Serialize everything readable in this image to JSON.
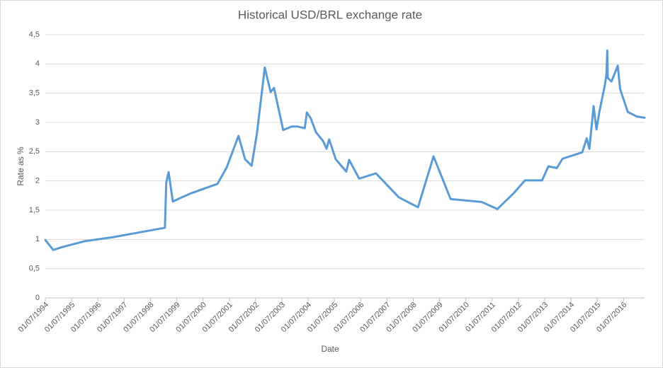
{
  "chart_data": {
    "type": "line",
    "title": "Historical USD/BRL exchange rate",
    "x_label": "Date",
    "y_label": "Rate as %",
    "xlim": [
      1994.5,
      2017.3
    ],
    "ylim": [
      0,
      4.5
    ],
    "xticks": [
      {
        "value": 1994.5,
        "label": "01/07/1994"
      },
      {
        "value": 1995.5,
        "label": "01/07/1995"
      },
      {
        "value": 1996.5,
        "label": "01/07/1996"
      },
      {
        "value": 1997.5,
        "label": "01/07/1997"
      },
      {
        "value": 1998.5,
        "label": "01/07/1998"
      },
      {
        "value": 1999.5,
        "label": "01/07/1999"
      },
      {
        "value": 2000.5,
        "label": "01/07/2000"
      },
      {
        "value": 2001.5,
        "label": "01/07/2001"
      },
      {
        "value": 2002.5,
        "label": "01/07/2002"
      },
      {
        "value": 2003.5,
        "label": "01/07/2003"
      },
      {
        "value": 2004.5,
        "label": "01/07/2004"
      },
      {
        "value": 2005.5,
        "label": "01/07/2005"
      },
      {
        "value": 2006.5,
        "label": "01/07/2006"
      },
      {
        "value": 2007.5,
        "label": "01/07/2007"
      },
      {
        "value": 2008.5,
        "label": "01/07/2008"
      },
      {
        "value": 2009.5,
        "label": "01/07/2009"
      },
      {
        "value": 2010.5,
        "label": "01/07/2010"
      },
      {
        "value": 2011.5,
        "label": "01/07/2011"
      },
      {
        "value": 2012.5,
        "label": "01/07/2012"
      },
      {
        "value": 2013.5,
        "label": "01/07/2013"
      },
      {
        "value": 2014.5,
        "label": "01/07/2014"
      },
      {
        "value": 2015.5,
        "label": "01/07/2015"
      },
      {
        "value": 2016.5,
        "label": "01/07/2016"
      }
    ],
    "yticks": [
      0,
      {
        "value": 0.5,
        "label": "0,5"
      },
      1,
      {
        "value": 1.5,
        "label": "1,5"
      },
      2,
      {
        "value": 2.5,
        "label": "2,5"
      },
      3,
      {
        "value": 3.5,
        "label": "3,5"
      },
      4,
      {
        "value": 4.5,
        "label": "4,5"
      }
    ],
    "grid": true,
    "color": "#5b9bd5",
    "x": [
      1994.5,
      1994.8,
      1995.15,
      1996.0,
      1997.1,
      1999.05,
      1999.1,
      1999.19,
      1999.35,
      2000.05,
      2001.05,
      2001.4,
      2001.85,
      2002.1,
      2002.35,
      2002.55,
      2002.85,
      2003.07,
      2003.2,
      2003.55,
      2003.88,
      2004.1,
      2004.37,
      2004.45,
      2004.6,
      2004.8,
      2005.07,
      2005.2,
      2005.3,
      2005.55,
      2005.74,
      2005.95,
      2006.06,
      2006.44,
      2007.08,
      2007.95,
      2008.68,
      2009.27,
      2009.92,
      2011.1,
      2011.7,
      2012.32,
      2012.75,
      2013.4,
      2013.64,
      2013.96,
      2014.18,
      2014.93,
      2015.1,
      2015.2,
      2015.36,
      2015.47,
      2015.58,
      2015.79,
      2015.85,
      2015.88,
      2015.9,
      2016.04,
      2016.28,
      2016.37,
      2016.66,
      2017.01,
      2017.3
    ],
    "values": [
      0.99,
      0.82,
      0.87,
      0.97,
      1.04,
      1.2,
      1.97,
      2.15,
      1.65,
      1.79,
      1.95,
      2.23,
      2.77,
      2.37,
      2.26,
      2.81,
      3.94,
      3.52,
      3.59,
      2.87,
      2.93,
      2.93,
      2.9,
      3.17,
      3.07,
      2.83,
      2.68,
      2.55,
      2.71,
      2.37,
      2.27,
      2.16,
      2.36,
      2.04,
      2.13,
      1.72,
      1.55,
      2.42,
      1.69,
      1.64,
      1.52,
      1.79,
      2.01,
      2.01,
      2.25,
      2.22,
      2.38,
      2.49,
      2.73,
      2.55,
      3.28,
      2.88,
      3.18,
      3.64,
      3.83,
      4.23,
      3.76,
      3.7,
      3.97,
      3.57,
      3.18,
      3.1,
      3.08
    ]
  }
}
